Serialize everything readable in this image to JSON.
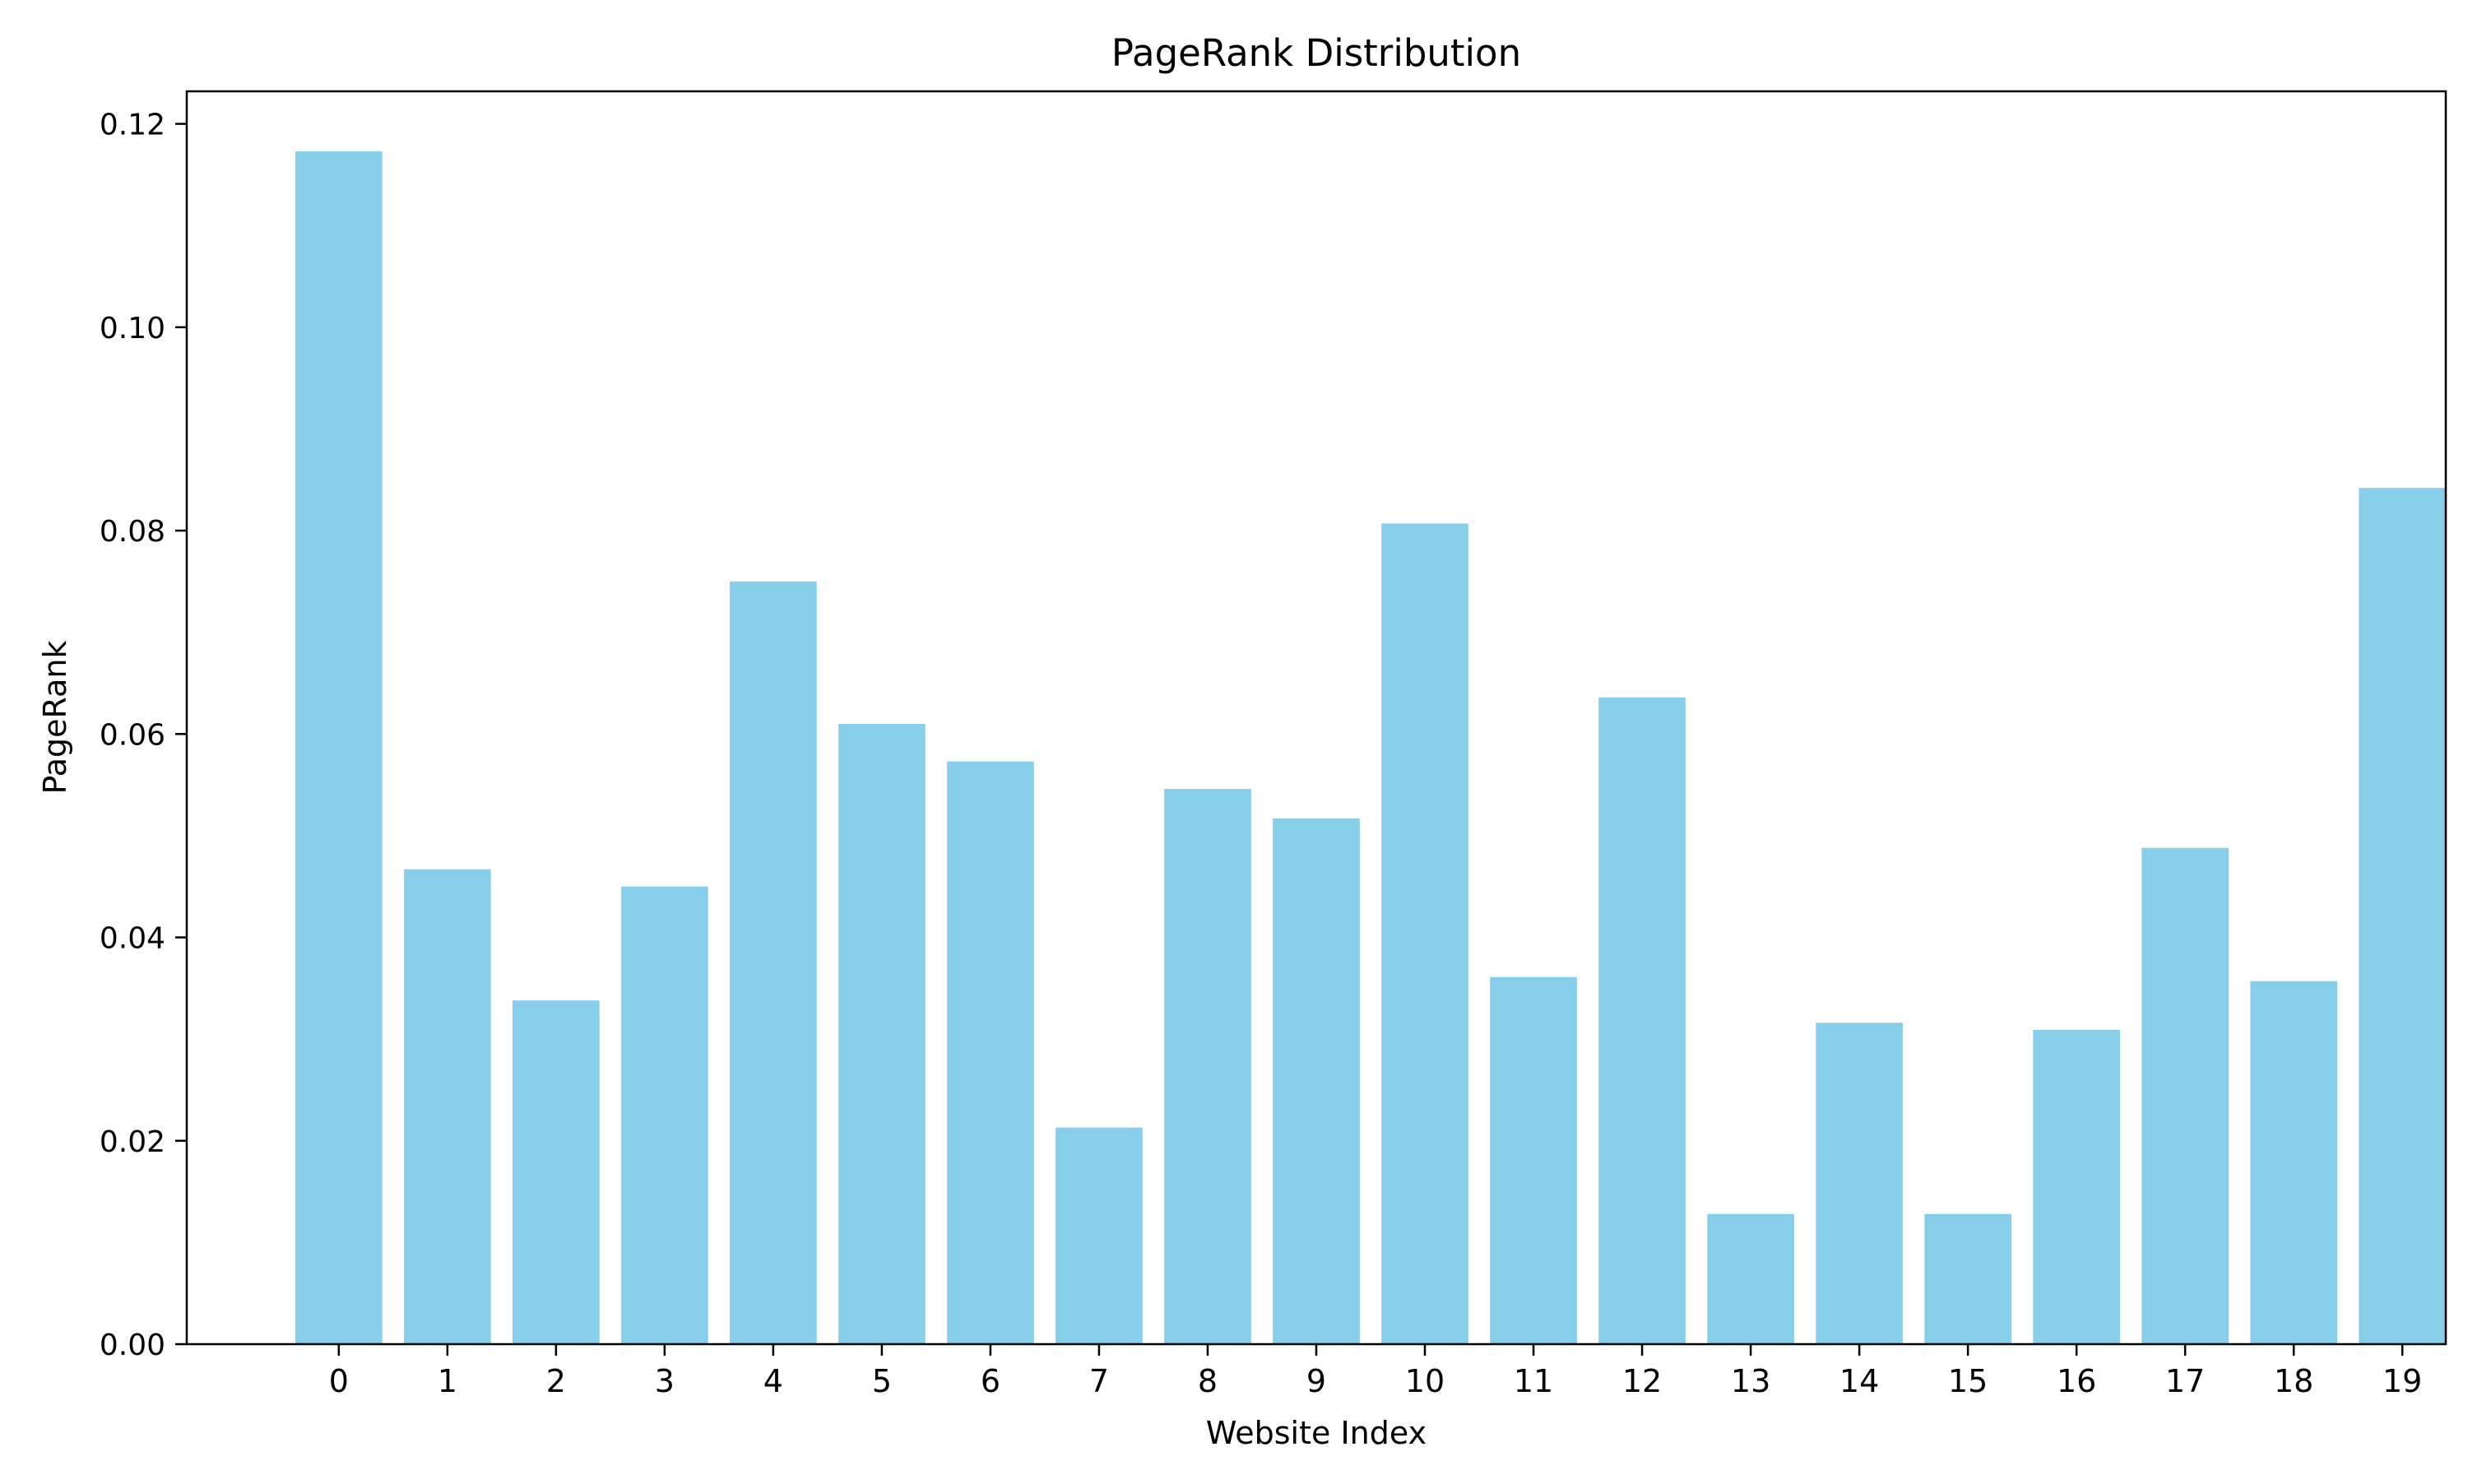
{
  "chart_data": {
    "type": "bar",
    "title": "PageRank Distribution",
    "xlabel": "Website Index",
    "ylabel": "PageRank",
    "categories": [
      "0",
      "1",
      "2",
      "3",
      "4",
      "5",
      "6",
      "7",
      "8",
      "9",
      "10",
      "11",
      "12",
      "13",
      "14",
      "15",
      "16",
      "17",
      "18",
      "19"
    ],
    "values": [
      0.1173,
      0.0467,
      0.0338,
      0.045,
      0.075,
      0.061,
      0.0573,
      0.0213,
      0.0546,
      0.0517,
      0.0807,
      0.0361,
      0.0636,
      0.0128,
      0.0316,
      0.0128,
      0.0309,
      0.0488,
      0.0357,
      0.0842
    ],
    "ylim": [
      0,
      0.1232
    ],
    "yticks": [
      0.0,
      0.02,
      0.04,
      0.06,
      0.08,
      0.1,
      0.12
    ],
    "ytick_labels": [
      "0.00",
      "0.02",
      "0.04",
      "0.06",
      "0.08",
      "0.10",
      "0.12"
    ],
    "grid": false,
    "bar_color": "#87CEEB",
    "axis_color": "#000000"
  }
}
